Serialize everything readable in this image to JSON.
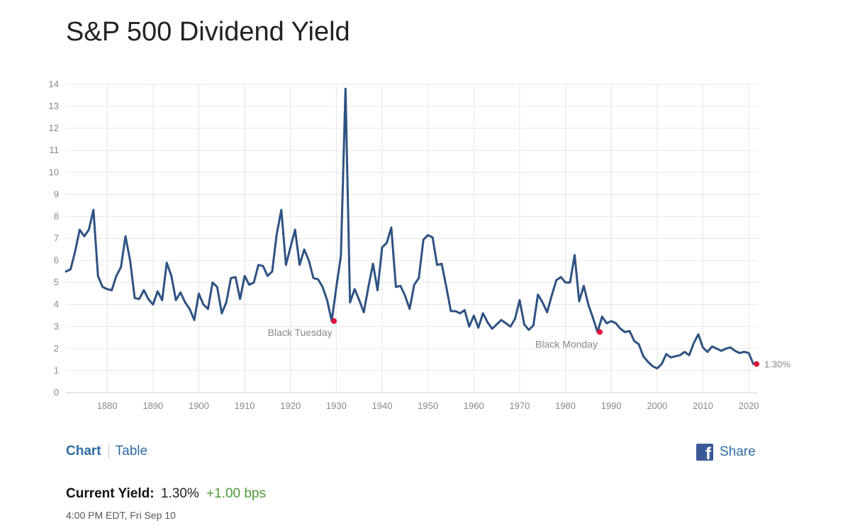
{
  "page": {
    "title": "S&P 500 Dividend Yield"
  },
  "tabs": {
    "chart_label": "Chart",
    "table_label": "Table"
  },
  "share": {
    "label": "Share",
    "icon": "facebook-icon",
    "icon_glyph": "f"
  },
  "current": {
    "label": "Current Yield:",
    "value": "1.30%",
    "change": "+1.00 bps",
    "timestamp": "4:00 PM EDT, Fri Sep 10"
  },
  "colors": {
    "line": "#2e5283",
    "marker": "#e0143c",
    "grid": "#e6e6e6",
    "positive": "#4e9a3a",
    "link": "#2e6da4"
  },
  "chart_data": {
    "type": "line",
    "title": "",
    "xlabel": "",
    "ylabel": "",
    "xlim": [
      1871,
      2022
    ],
    "ylim": [
      0,
      14
    ],
    "grid": true,
    "xticks": [
      1880,
      1890,
      1900,
      1910,
      1920,
      1930,
      1940,
      1950,
      1960,
      1970,
      1980,
      1990,
      2000,
      2010,
      2020
    ],
    "yticks": [
      0,
      1,
      2,
      3,
      4,
      5,
      6,
      7,
      8,
      9,
      10,
      11,
      12,
      13,
      14
    ],
    "series": [
      {
        "x": [
          1871,
          1872,
          1873,
          1874,
          1875,
          1876,
          1877,
          1878,
          1879,
          1880,
          1881,
          1882,
          1883,
          1884,
          1885,
          1886,
          1887,
          1888,
          1889,
          1890,
          1891,
          1892,
          1893,
          1894,
          1895,
          1896,
          1897,
          1898,
          1899,
          1900,
          1901,
          1902,
          1903,
          1904,
          1905,
          1906,
          1907,
          1908,
          1909,
          1910,
          1911,
          1912,
          1913,
          1914,
          1915,
          1916,
          1917,
          1918,
          1919,
          1920,
          1921,
          1922,
          1923,
          1924,
          1925,
          1926,
          1927,
          1928,
          1929,
          1930,
          1931,
          1932,
          1933,
          1934,
          1935,
          1936,
          1937,
          1938,
          1939,
          1940,
          1941,
          1942,
          1943,
          1944,
          1945,
          1946,
          1947,
          1948,
          1949,
          1950,
          1951,
          1952,
          1953,
          1954,
          1955,
          1956,
          1957,
          1958,
          1959,
          1960,
          1961,
          1962,
          1963,
          1964,
          1965,
          1966,
          1967,
          1968,
          1969,
          1970,
          1971,
          1972,
          1973,
          1974,
          1975,
          1976,
          1977,
          1978,
          1979,
          1980,
          1981,
          1982,
          1983,
          1984,
          1985,
          1986,
          1987,
          1988,
          1989,
          1990,
          1991,
          1992,
          1993,
          1994,
          1995,
          1996,
          1997,
          1998,
          1999,
          2000,
          2001,
          2002,
          2003,
          2004,
          2005,
          2006,
          2007,
          2008,
          2009,
          2010,
          2011,
          2012,
          2013,
          2014,
          2015,
          2016,
          2017,
          2018,
          2019,
          2020,
          2021
        ],
        "values": [
          5.5,
          5.6,
          6.4,
          7.4,
          7.1,
          7.4,
          8.3,
          5.3,
          4.8,
          4.7,
          4.65,
          5.3,
          5.7,
          7.1,
          6.0,
          4.3,
          4.25,
          4.65,
          4.25,
          4.0,
          4.6,
          4.2,
          5.9,
          5.3,
          4.2,
          4.55,
          4.1,
          3.8,
          3.3,
          4.5,
          4.0,
          3.8,
          5.0,
          4.8,
          3.6,
          4.1,
          5.2,
          5.25,
          4.25,
          5.3,
          4.9,
          5.0,
          5.8,
          5.75,
          5.3,
          5.5,
          7.2,
          8.3,
          5.8,
          6.6,
          7.4,
          5.8,
          6.5,
          6.0,
          5.2,
          5.15,
          4.8,
          4.2,
          3.25,
          4.8,
          6.2,
          13.8,
          4.1,
          4.7,
          4.2,
          3.65,
          4.8,
          5.85,
          4.65,
          6.6,
          6.8,
          7.5,
          4.8,
          4.85,
          4.4,
          3.8,
          4.9,
          5.2,
          6.95,
          7.15,
          7.05,
          5.8,
          5.85,
          4.8,
          3.7,
          3.7,
          3.6,
          3.75,
          3.0,
          3.5,
          2.95,
          3.6,
          3.2,
          2.9,
          3.1,
          3.3,
          3.15,
          3.0,
          3.35,
          4.2,
          3.1,
          2.85,
          3.05,
          4.45,
          4.1,
          3.65,
          4.4,
          5.1,
          5.25,
          5.0,
          5.0,
          6.25,
          4.15,
          4.85,
          4.0,
          3.4,
          2.75,
          3.45,
          3.15,
          3.25,
          3.15,
          2.9,
          2.75,
          2.8,
          2.35,
          2.2,
          1.65,
          1.4,
          1.2,
          1.1,
          1.3,
          1.75,
          1.6,
          1.65,
          1.7,
          1.85,
          1.7,
          2.25,
          2.65,
          2.05,
          1.85,
          2.1,
          2.0,
          1.9,
          2.0,
          2.05,
          1.9,
          1.8,
          1.85,
          1.8,
          1.3
        ]
      }
    ],
    "annotations": [
      {
        "x": 1929.5,
        "y": 3.25,
        "text": "Black Tuesday"
      },
      {
        "x": 1987.5,
        "y": 2.75,
        "text": "Black Monday"
      },
      {
        "x": 2021.7,
        "y": 1.3,
        "text": "1.30%"
      }
    ]
  }
}
